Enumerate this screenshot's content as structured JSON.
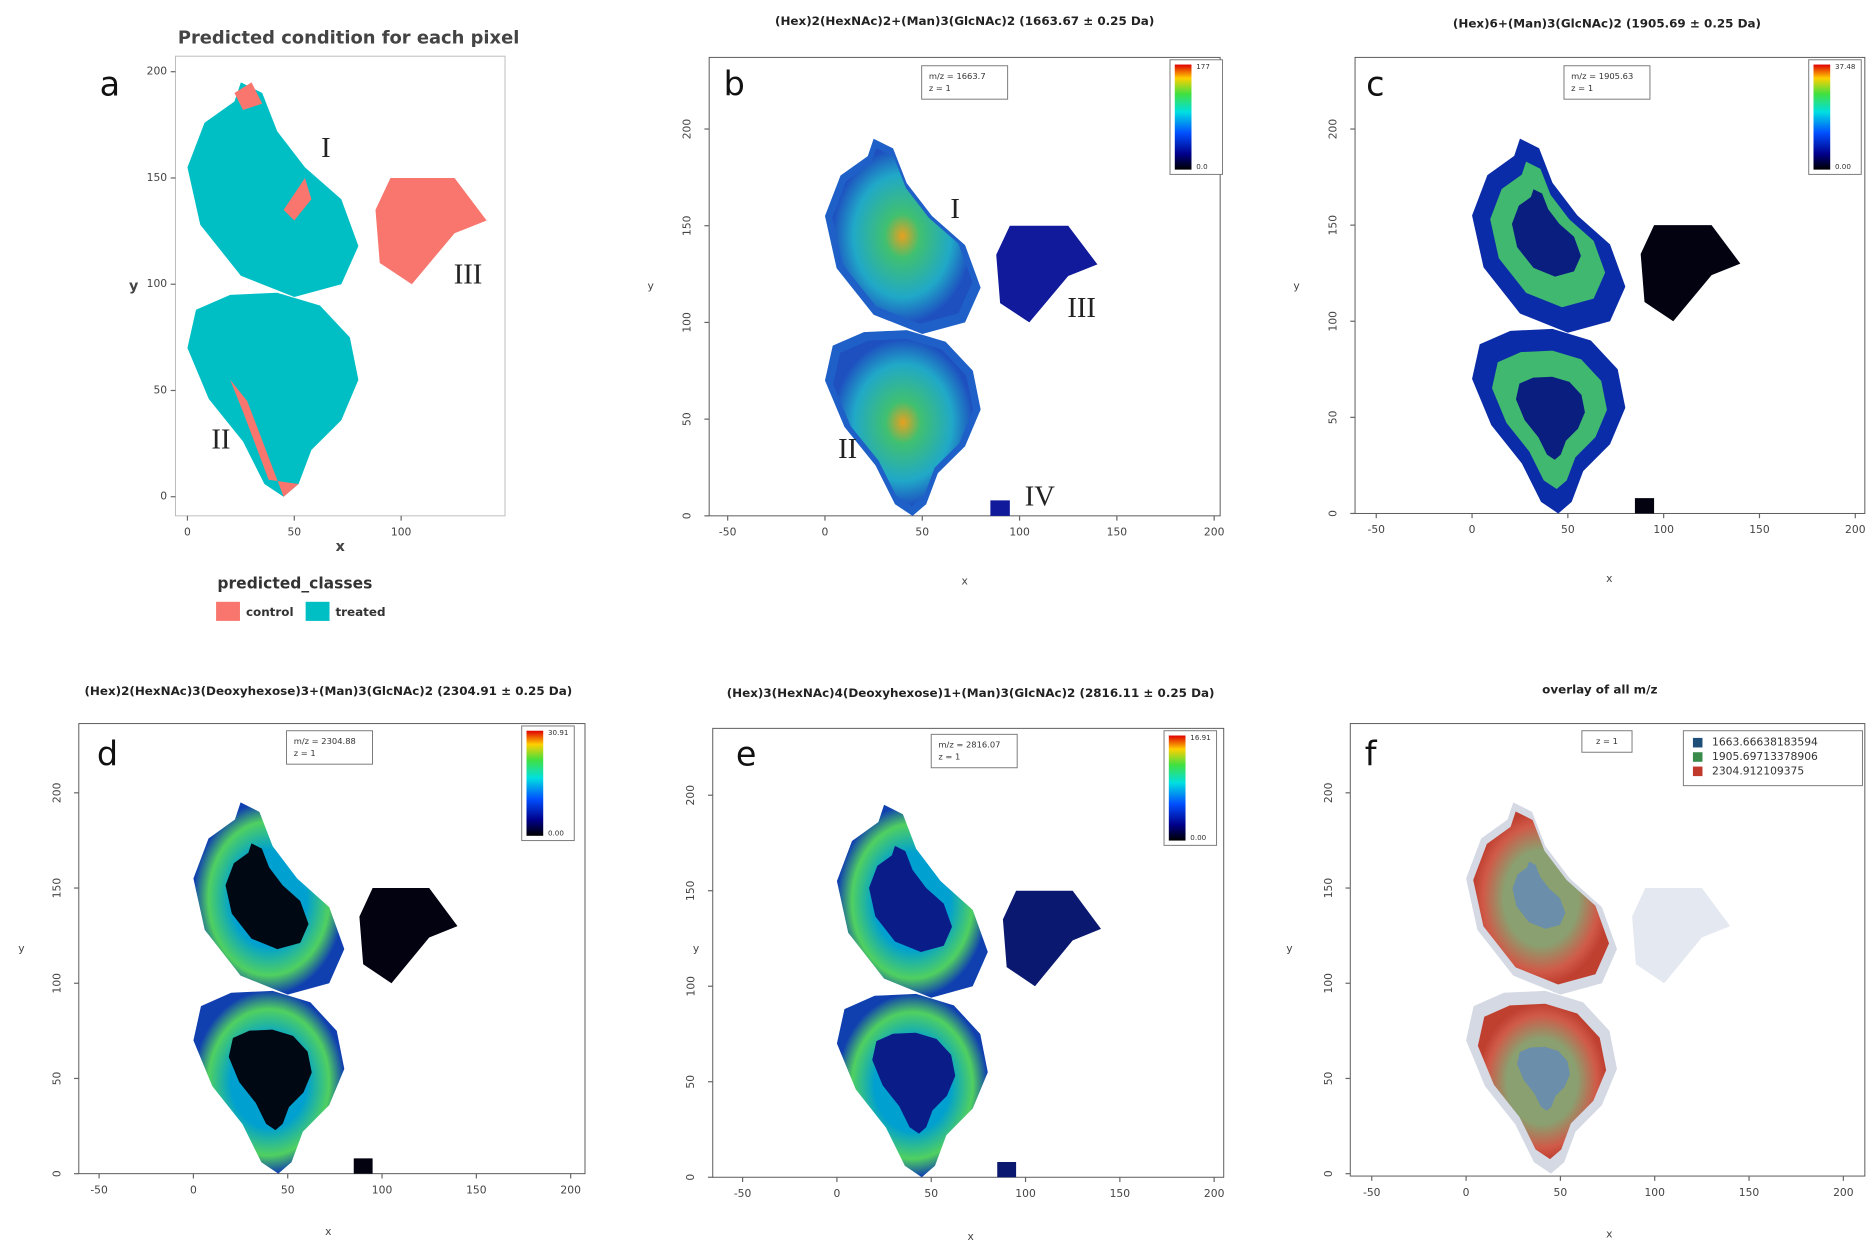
{
  "panels": [
    {
      "letter": "a",
      "title": "Predicted condition for each pixel",
      "xlabel": "x",
      "ylabel": "y",
      "xticks": [
        0,
        50,
        100
      ],
      "yticks": [
        0,
        50,
        100,
        150,
        200
      ],
      "region_labels": [
        "I",
        "II",
        "III"
      ],
      "legend_title": "predicted_classes",
      "legend": [
        {
          "name": "control",
          "color": "#f8766d"
        },
        {
          "name": "treated",
          "color": "#00bfc4"
        }
      ]
    },
    {
      "letter": "b",
      "title": "(Hex)2(HexNAc)2+(Man)3(GlcNAc)2 (1663.67 ± 0.25 Da)",
      "xlabel": "x",
      "ylabel": "y",
      "xticks": [
        -50,
        0,
        50,
        100,
        150,
        200
      ],
      "yticks": [
        0,
        50,
        100,
        150,
        200
      ],
      "info": [
        "m/z = 1663.7",
        "z = 1"
      ],
      "colorbar": [
        "177",
        "0.0"
      ],
      "region_labels": [
        "I",
        "II",
        "III",
        "IV"
      ]
    },
    {
      "letter": "c",
      "title": "(Hex)6+(Man)3(GlcNAc)2 (1905.69 ± 0.25 Da)",
      "xlabel": "x",
      "ylabel": "y",
      "xticks": [
        -50,
        0,
        50,
        100,
        150,
        200
      ],
      "yticks": [
        0,
        50,
        100,
        150,
        200
      ],
      "info": [
        "m/z = 1905.63",
        "z = 1"
      ],
      "colorbar": [
        "37.48",
        "0.00"
      ]
    },
    {
      "letter": "d",
      "title": "(Hex)2(HexNAc)3(Deoxyhexose)3+(Man)3(GlcNAc)2 (2304.91 ± 0.25 Da)",
      "xlabel": "x",
      "ylabel": "y",
      "xticks": [
        -50,
        0,
        50,
        100,
        150,
        200
      ],
      "yticks": [
        0,
        50,
        100,
        150,
        200
      ],
      "info": [
        "m/z = 2304.88",
        "z = 1"
      ],
      "colorbar": [
        "30.91",
        "0.00"
      ]
    },
    {
      "letter": "e",
      "title": "(Hex)3(HexNAc)4(Deoxyhexose)1+(Man)3(GlcNAc)2 (2816.11 ± 0.25 Da)",
      "xlabel": "x",
      "ylabel": "y",
      "xticks": [
        -50,
        0,
        50,
        100,
        150,
        200
      ],
      "yticks": [
        0,
        50,
        100,
        150,
        200
      ],
      "info": [
        "m/z = 2816.07",
        "z = 1"
      ],
      "colorbar": [
        "16.91",
        "0.00"
      ]
    },
    {
      "letter": "f",
      "title": "overlay of all m/z",
      "xlabel": "x",
      "ylabel": "y",
      "xticks": [
        -50,
        0,
        50,
        100,
        150,
        200
      ],
      "yticks": [
        0,
        50,
        100,
        150,
        200
      ],
      "info": [
        "z = 1"
      ],
      "legend": [
        {
          "name": "1663.66638183594",
          "color": "#1f4e79"
        },
        {
          "name": "1905.69713378906",
          "color": "#3a8a4a"
        },
        {
          "name": "2304.912109375",
          "color": "#c0392b"
        }
      ]
    }
  ]
}
